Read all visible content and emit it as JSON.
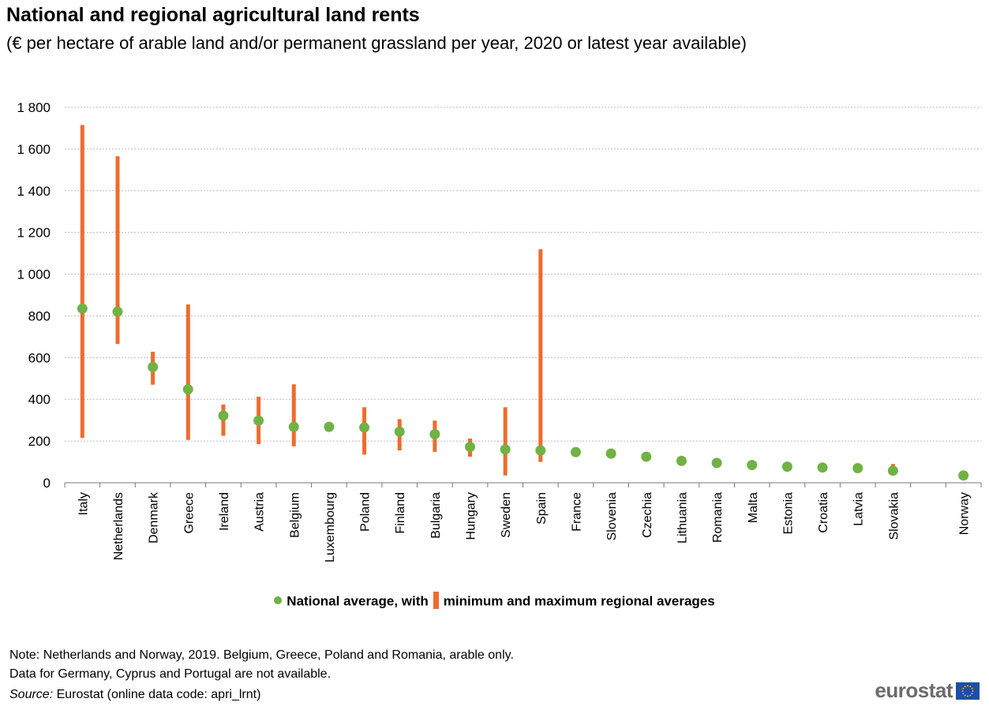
{
  "chart_data": {
    "type": "dot-range",
    "title": "National and regional agricultural land rents",
    "subtitle": "(€ per hectare of arable land and/or permanent grassland per year, 2020 or latest year available)",
    "ylim": [
      0,
      1800
    ],
    "yticks": [
      0,
      200,
      400,
      600,
      800,
      1000,
      1200,
      1400,
      1600,
      1800
    ],
    "ytick_labels": [
      "0",
      "200",
      "400",
      "600",
      "800",
      "1 000",
      "1 200",
      "1 400",
      "1 600",
      "1 800"
    ],
    "grid": true,
    "categories": [
      "Italy",
      "Netherlands",
      "Denmark",
      "Greece",
      "Ireland",
      "Austria",
      "Belgium",
      "Luxembourg",
      "Poland",
      "Finland",
      "Bulgaria",
      "Hungary",
      "Sweden",
      "Spain",
      "France",
      "Slovenia",
      "Czechia",
      "Lithuania",
      "Romania",
      "Malta",
      "Estonia",
      "Croatia",
      "Latvia",
      "Slovakia",
      "Norway"
    ],
    "gap_before": "Norway",
    "series": [
      {
        "name": "National average",
        "values": [
          835,
          820,
          555,
          448,
          322,
          298,
          268,
          268,
          265,
          245,
          233,
          172,
          160,
          155,
          147,
          140,
          125,
          105,
          95,
          85,
          77,
          73,
          70,
          58,
          35
        ]
      },
      {
        "name": "minimum regional average",
        "values": [
          215,
          665,
          470,
          205,
          225,
          185,
          175,
          null,
          135,
          155,
          148,
          125,
          35,
          100,
          null,
          null,
          null,
          null,
          78,
          null,
          null,
          null,
          null,
          50,
          null
        ]
      },
      {
        "name": "maximum regional average",
        "values": [
          1715,
          1565,
          628,
          855,
          375,
          412,
          472,
          null,
          362,
          305,
          298,
          212,
          362,
          1120,
          null,
          null,
          null,
          null,
          100,
          null,
          null,
          null,
          null,
          90,
          null
        ]
      }
    ],
    "colors": {
      "dot": "#70b244",
      "range": "#f06b2c",
      "grid": "#bdbdbd"
    },
    "legend": {
      "part1": "National average, with",
      "part2": "minimum and maximum regional averages"
    }
  },
  "notes": {
    "line1": "Note: Netherlands and Norway, 2019. Belgium, Greece, Poland and Romania, arable only.",
    "line2": "Data for Germany, Cyprus and Portugal are not available.",
    "source_label": "Source:",
    "source_text": " Eurostat (online data code: apri_lrnt)"
  },
  "logo": {
    "text": "eurostat"
  }
}
